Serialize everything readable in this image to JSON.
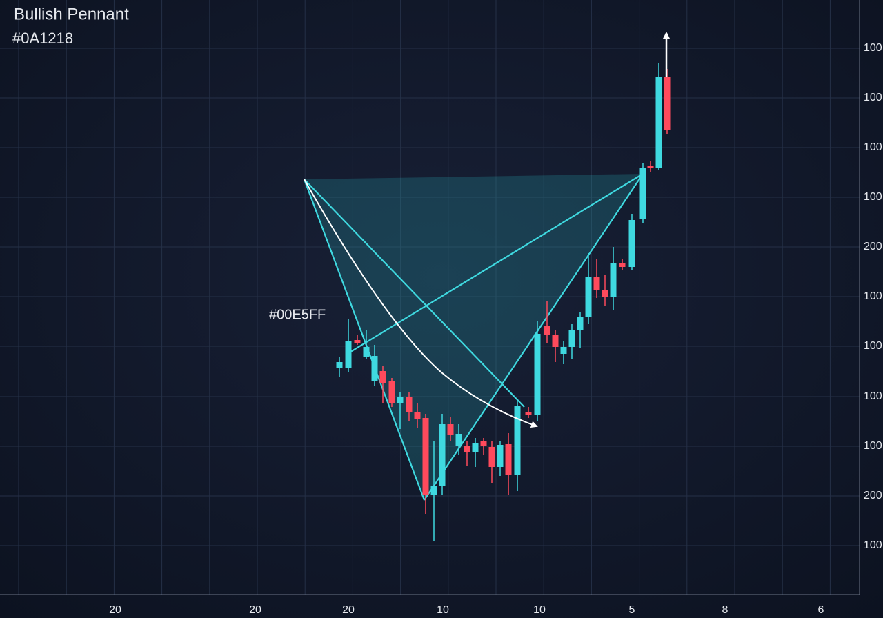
{
  "title": "Bullish Pennant",
  "subtitle": "#0A1218",
  "annotation": "#00E5FF",
  "y_axis_labels": [
    "100",
    "100",
    "100",
    "100",
    "200",
    "100",
    "100",
    "100",
    "100",
    "200",
    "100"
  ],
  "x_axis_labels": [
    "20",
    "20",
    "20",
    "10",
    "10",
    "5",
    "8",
    "6"
  ]
}
